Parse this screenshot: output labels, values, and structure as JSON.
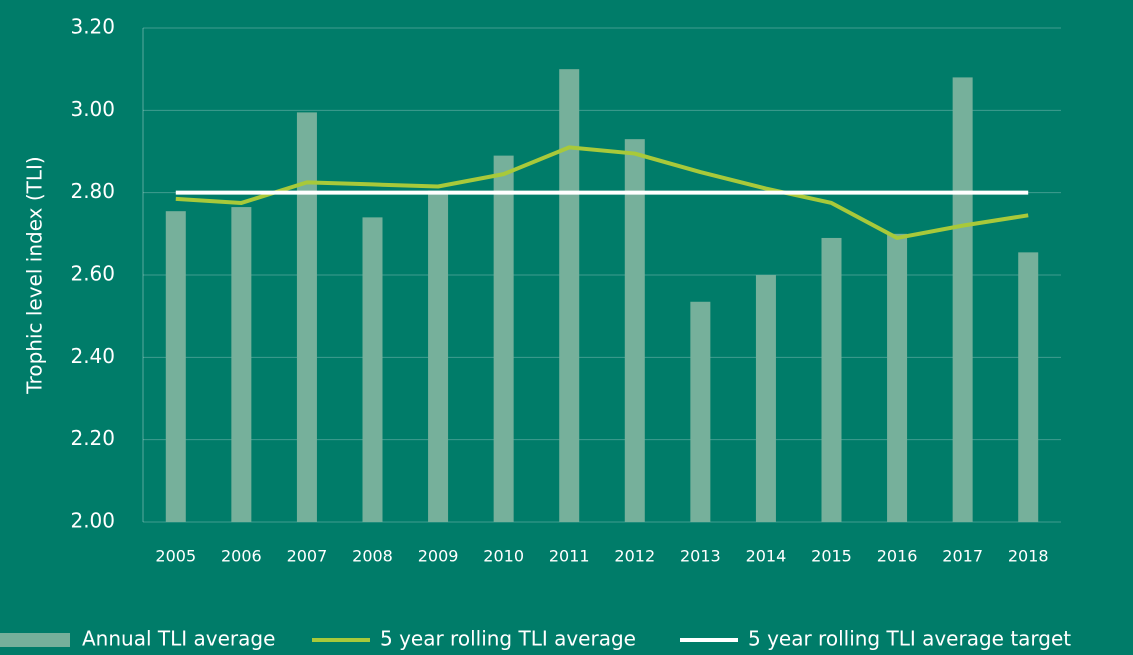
{
  "chart_data": {
    "type": "bar",
    "y_label": "Trophic level index (TLI)",
    "categories": [
      "2005",
      "2006",
      "2007",
      "2008",
      "2009",
      "2010",
      "2011",
      "2012",
      "2013",
      "2014",
      "2015",
      "2016",
      "2017",
      "2018"
    ],
    "series": [
      {
        "name": "Annual TLI average",
        "type": "bar",
        "color": "#76b09b",
        "values": [
          2.755,
          2.765,
          2.995,
          2.74,
          2.805,
          2.89,
          3.1,
          2.93,
          2.535,
          2.6,
          2.69,
          2.7,
          3.08,
          2.655
        ]
      },
      {
        "name": "5 year rolling TLI average",
        "type": "line",
        "color": "#a8c93a",
        "values": [
          2.785,
          2.775,
          2.825,
          2.82,
          2.815,
          2.845,
          2.91,
          2.895,
          2.85,
          2.81,
          2.775,
          2.69,
          2.72,
          2.745
        ]
      },
      {
        "name": "5 year rolling TLI average target",
        "type": "line",
        "color": "#ffffff",
        "values": [
          2.8,
          2.8,
          2.8,
          2.8,
          2.8,
          2.8,
          2.8,
          2.8,
          2.8,
          2.8,
          2.8,
          2.8,
          2.8,
          2.8
        ]
      }
    ],
    "ylim": [
      2.0,
      3.2
    ],
    "yticks": [
      {
        "value": 2.0,
        "label": "2.00"
      },
      {
        "value": 2.2,
        "label": "2.20"
      },
      {
        "value": 2.4,
        "label": "2.40"
      },
      {
        "value": 2.6,
        "label": "2.60"
      },
      {
        "value": 2.8,
        "label": "2.80"
      },
      {
        "value": 3.0,
        "label": "3.00"
      },
      {
        "value": 3.2,
        "label": "3.20"
      }
    ],
    "grid": true,
    "legend": "bottom"
  }
}
